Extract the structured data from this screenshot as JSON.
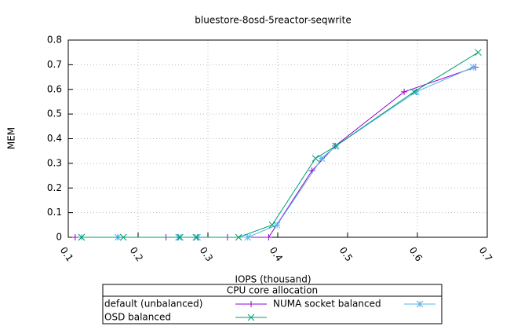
{
  "chart_data": {
    "type": "line",
    "title": "bluestore-8osd-5reactor-seqwrite",
    "x_label": "IOPS (thousand)",
    "y_label": "MEM",
    "legend_title": "CPU core allocation",
    "xlim": [
      0.1,
      0.7
    ],
    "xticks": [
      0.1,
      0.2,
      0.3,
      0.4,
      0.5,
      0.6,
      0.7
    ],
    "ylim": [
      0,
      0.8
    ],
    "yticks": [
      0,
      0.1,
      0.2,
      0.3,
      0.4,
      0.5,
      0.6,
      0.7,
      0.8
    ],
    "grid": true,
    "series": [
      {
        "name": "default (unbalanced)",
        "color": "#9400d3",
        "marker": "plus",
        "x": [
          0.11,
          0.171,
          0.24,
          0.258,
          0.285,
          0.328,
          0.387,
          0.449,
          0.482,
          0.581,
          0.683
        ],
        "values": [
          0,
          0,
          0,
          0,
          0,
          0,
          0,
          0.27,
          0.37,
          0.59,
          0.69
        ]
      },
      {
        "name": "NUMA socket balanced",
        "color": "#56b4e9",
        "marker": "star",
        "x": [
          0.119,
          0.171,
          0.258,
          0.285,
          0.357,
          0.399,
          0.463,
          0.483,
          0.598,
          0.68
        ],
        "values": [
          0,
          0,
          0,
          0,
          0,
          0.05,
          0.32,
          0.37,
          0.59,
          0.69
        ]
      },
      {
        "name": "OSD balanced",
        "color": "#009e73",
        "marker": "cross",
        "x": [
          0.119,
          0.179,
          0.26,
          0.283,
          0.344,
          0.392,
          0.454,
          0.483,
          0.595,
          0.687
        ],
        "values": [
          0,
          0,
          0,
          0,
          0,
          0.05,
          0.32,
          0.37,
          0.59,
          0.75
        ]
      }
    ]
  }
}
